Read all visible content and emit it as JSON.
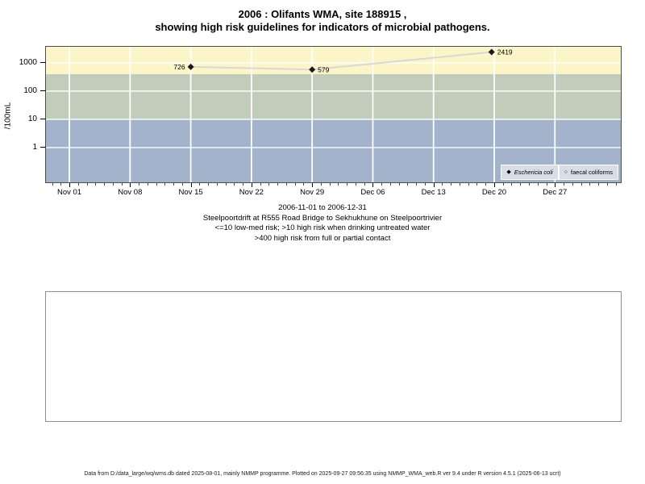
{
  "page": {
    "title_line1": "2006 : Olifants WMA, site 188915 ,",
    "title_line2": "showing high risk guidelines for indicators of microbial pathogens.",
    "footer": "Data from D:/data_large/wq/wms.db dated 2025-08-01, mainly NMMP programme. Plotted on 2025-09-27 09:56:35 using NMMP_WMA_web.R ver 9.4 under R version 4.5.1 (2025-06-13 ucrt)"
  },
  "chart_data": {
    "type": "scatter",
    "title": "2006 : Olifants WMA, site 188915 , showing high risk guidelines for indicators of microbial pathogens.",
    "ylabel": "/100mL",
    "y_scale": "log10",
    "y_ticks": [
      1000,
      100,
      10,
      1
    ],
    "y_log_range": [
      -1.23,
      3.571
    ],
    "x_range_days": [
      -2.7,
      63.6
    ],
    "x_ticks": [
      {
        "label": "Nov 01",
        "day": 0
      },
      {
        "label": "Nov 08",
        "day": 7
      },
      {
        "label": "Nov 15",
        "day": 14
      },
      {
        "label": "Nov 22",
        "day": 21
      },
      {
        "label": "Nov 29",
        "day": 28
      },
      {
        "label": "Dec 06",
        "day": 35
      },
      {
        "label": "Dec 13",
        "day": 42
      },
      {
        "label": "Dec 20",
        "day": 49
      },
      {
        "label": "Dec 27",
        "day": 56
      }
    ],
    "x_minor_tick_days": [
      -2,
      63
    ],
    "grid": "white lines on colored risk bands",
    "risk_bands": [
      {
        "name": "high risk from full or partial contact",
        "min": 400,
        "max": null,
        "color": "#fbf5c7"
      },
      {
        "name": "high risk when drinking untreated water",
        "min": 10,
        "max": 400,
        "color": "#c2ccba"
      },
      {
        "name": "low-med risk",
        "min": null,
        "max": 10,
        "color": "#a2b3cb"
      }
    ],
    "series": [
      {
        "name": "Eschericia coli",
        "marker": "filled-diamond",
        "line_color": "#d8d8d8",
        "point_color": "#1a1a1a",
        "points": [
          {
            "day": 14,
            "value": 726,
            "label": "726",
            "label_side": "left"
          },
          {
            "day": 28,
            "value": 579,
            "label": "579",
            "label_side": "right"
          },
          {
            "day": 48.7,
            "value": 2419,
            "label": "2419",
            "label_side": "right"
          }
        ]
      },
      {
        "name": "faecal coliforms",
        "marker": "open-circle",
        "points": []
      }
    ],
    "legend": {
      "position": "bottom-right",
      "items": [
        {
          "marker": "◆",
          "label": "Eschericia coli",
          "italic": true
        },
        {
          "marker": "○",
          "label": "faecal coliforms",
          "italic": false
        }
      ]
    },
    "subtitle_lines": [
      "2006-11-01 to 2006-12-31",
      "Steelpoortdrift at R555 Road Bridge to Sekhukhune on Steelpoortrivier",
      "<=10 low-med risk; >10 high risk when drinking untreated water",
      ">400 high risk from full or partial contact"
    ]
  }
}
